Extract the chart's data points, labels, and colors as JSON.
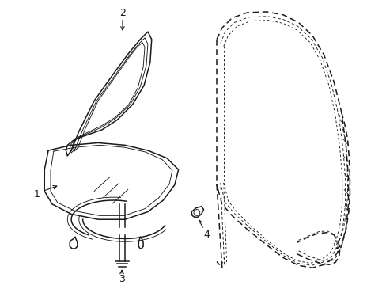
{
  "bg_color": "#ffffff",
  "line_color": "#1a1a1a",
  "figsize": [
    4.89,
    3.6
  ],
  "dpi": 100,
  "lw_main": 1.1,
  "lw_thin": 0.65,
  "lw_thick": 1.4
}
